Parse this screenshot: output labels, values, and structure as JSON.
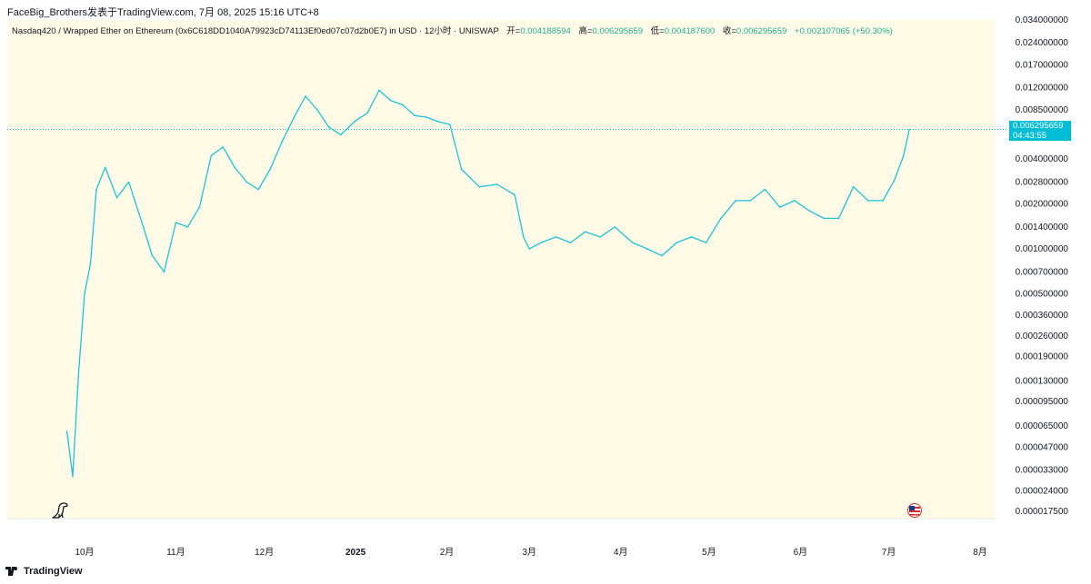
{
  "header": {
    "author_line": "FaceBig_Brothers发表于TradingView.com,  7月 08, 2025 15:16 UTC+8"
  },
  "legend": {
    "symbol": "Nasdaq420 / Wrapped Ether on Ethereum (0x6C618DD1040A79923cD74113Ef0ed07c07d2b0E7) in USD · 12小时 · UNISWAP",
    "open_label": "开=",
    "open_value": "0.004188594",
    "high_label": "高=",
    "high_value": "0.006295659",
    "low_label": "低=",
    "low_value": "0.004187600",
    "close_label": "收=",
    "close_value": "0.006295659",
    "change_value": "+0.002107065 (+50.30%)"
  },
  "price_tag": {
    "price": "0.006295659",
    "countdown": "04:43:55"
  },
  "footer": {
    "brand": "TradingView"
  },
  "colors": {
    "series": "#22c0d8",
    "change": "#22ab94",
    "plot_bg": "#fffbe6",
    "tag": "#00bcd4"
  },
  "icons": [
    "dinosaur-icon",
    "us-flag-icon",
    "tradingview-logo-icon"
  ],
  "chart_data": {
    "type": "line",
    "scale": "log",
    "y_ticks": [
      "0.034000000",
      "0.024000000",
      "0.017000000",
      "0.012000000",
      "0.008500000",
      "0.004000000",
      "0.002800000",
      "0.002000000",
      "0.001400000",
      "0.001000000",
      "0.000700000",
      "0.000500000",
      "0.000360000",
      "0.000260000",
      "0.000190000",
      "0.000130000",
      "0.000095000",
      "0.000065000",
      "0.000047000",
      "0.000033000",
      "0.000024000",
      "0.000017500"
    ],
    "x_ticks": [
      "10月",
      "11月",
      "12月",
      "2025",
      "2月",
      "3月",
      "4月",
      "5月",
      "6月",
      "7月",
      "8月"
    ],
    "last_price": 0.006295659,
    "series": [
      {
        "x": [
          "2024-09-25",
          "2024-09-27",
          "2024-09-29",
          "2024-10-01",
          "2024-10-03",
          "2024-10-05",
          "2024-10-08",
          "2024-10-12",
          "2024-10-16",
          "2024-10-20",
          "2024-10-24",
          "2024-10-28",
          "2024-11-01",
          "2024-11-05",
          "2024-11-09",
          "2024-11-13",
          "2024-11-17",
          "2024-11-21",
          "2024-11-25",
          "2024-11-29",
          "2024-12-03",
          "2024-12-07",
          "2024-12-11",
          "2024-12-15",
          "2024-12-19",
          "2024-12-23",
          "2024-12-27",
          "2025-01-01",
          "2025-01-05",
          "2025-01-09",
          "2025-01-13",
          "2025-01-17",
          "2025-01-21",
          "2025-01-25",
          "2025-01-29",
          "2025-02-02",
          "2025-02-06",
          "2025-02-12",
          "2025-02-18",
          "2025-02-24",
          "2025-02-27",
          "2025-03-01",
          "2025-03-05",
          "2025-03-10",
          "2025-03-15",
          "2025-03-20",
          "2025-03-25",
          "2025-03-30",
          "2025-04-05",
          "2025-04-10",
          "2025-04-15",
          "2025-04-20",
          "2025-04-25",
          "2025-04-30",
          "2025-05-05",
          "2025-05-10",
          "2025-05-15",
          "2025-05-20",
          "2025-05-25",
          "2025-05-30",
          "2025-06-04",
          "2025-06-09",
          "2025-06-14",
          "2025-06-19",
          "2025-06-24",
          "2025-06-29",
          "2025-07-03",
          "2025-07-06",
          "2025-07-08"
        ],
        "y": [
          6e-05,
          3e-05,
          0.00015,
          0.0005,
          0.0008,
          0.0025,
          0.0035,
          0.0022,
          0.0028,
          0.0016,
          0.0009,
          0.0007,
          0.0015,
          0.0014,
          0.0019,
          0.0042,
          0.0048,
          0.0035,
          0.0028,
          0.0025,
          0.0034,
          0.0052,
          0.0075,
          0.0105,
          0.0085,
          0.0065,
          0.0058,
          0.0072,
          0.0081,
          0.0115,
          0.0098,
          0.0092,
          0.0078,
          0.0076,
          0.0071,
          0.0068,
          0.0034,
          0.0026,
          0.0027,
          0.0023,
          0.0012,
          0.001,
          0.0011,
          0.0012,
          0.0011,
          0.0013,
          0.0012,
          0.0014,
          0.0011,
          0.001,
          0.0009,
          0.0011,
          0.0012,
          0.0011,
          0.0016,
          0.0021,
          0.0021,
          0.0025,
          0.0019,
          0.0021,
          0.0018,
          0.0016,
          0.0016,
          0.0026,
          0.0021,
          0.0021,
          0.0029,
          0.0042,
          0.006295659
        ]
      }
    ]
  }
}
